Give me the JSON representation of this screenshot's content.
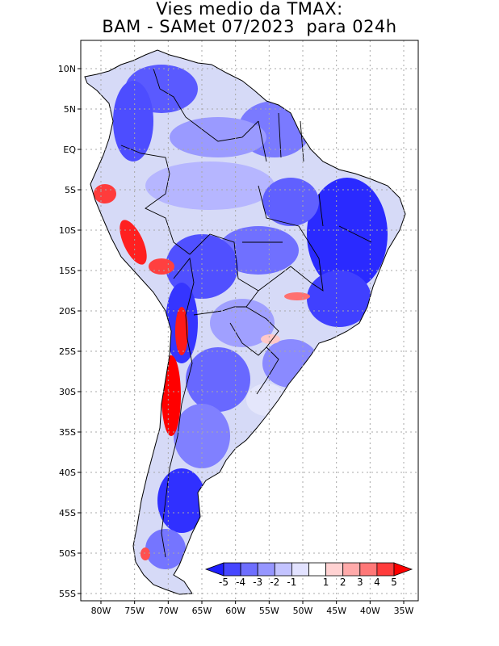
{
  "title": {
    "line1": "Vies medio da TMAX:",
    "line2": "BAM - SAMet 07/2023  para 024h"
  },
  "map": {
    "lat_labels": [
      "10N",
      "5N",
      "EQ",
      "5S",
      "10S",
      "15S",
      "20S",
      "25S",
      "30S",
      "35S",
      "40S",
      "45S",
      "50S",
      "55S"
    ],
    "lon_labels": [
      "80W",
      "75W",
      "70W",
      "65W",
      "60W",
      "55W",
      "50W",
      "45W",
      "40W",
      "35W"
    ],
    "lat_values": [
      10,
      5,
      0,
      -5,
      -10,
      -15,
      -20,
      -25,
      -30,
      -35,
      -40,
      -45,
      -50,
      -55
    ],
    "lon_values": [
      -80,
      -75,
      -70,
      -65,
      -60,
      -55,
      -50,
      -45,
      -40,
      -35
    ]
  },
  "colorbar": {
    "labels": [
      "-5",
      "-4",
      "-3",
      "-2",
      "-1",
      "1",
      "2",
      "3",
      "4",
      "5"
    ],
    "colors": [
      "#1e1eff",
      "#4646ff",
      "#6e6eff",
      "#9696ff",
      "#c3c3ff",
      "#e2e2ff",
      "#ffffff",
      "#ffd2d2",
      "#ffaaaa",
      "#ff7878",
      "#ff3c3c",
      "#ff0000"
    ]
  },
  "colors": {
    "land_light": "#d8dcf8",
    "strong_blue": "#2a2aff",
    "red": "#ff1a1a"
  }
}
